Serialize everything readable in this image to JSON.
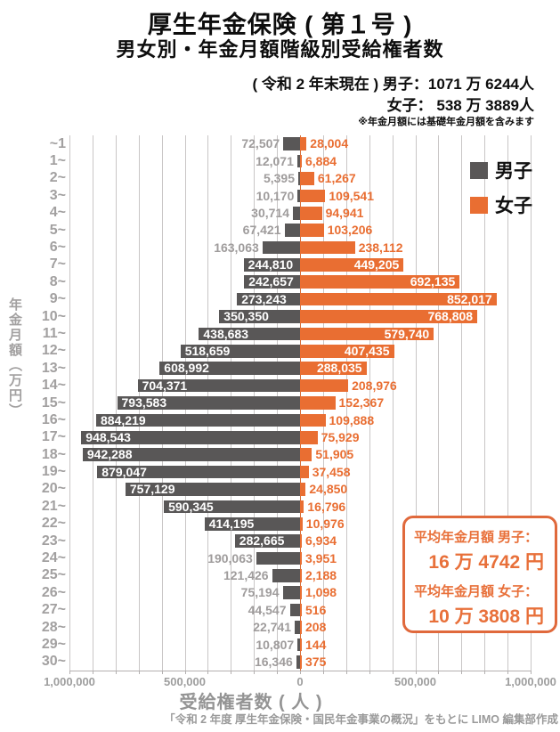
{
  "title": "厚生年金保険 ( 第１号 )",
  "subtitle": "男女別・年金月額階級別受給権者数",
  "header_info": {
    "line1": "( 令和 2 年末現在 ) 男子：1071 万 6244人",
    "line2": "女子：  538 万 3889人",
    "note": "※年金月額には基礎年金月額を含みます"
  },
  "legend": {
    "male_label": "男子",
    "female_label": "女子"
  },
  "average_box": {
    "male_label": "平均年金月額 男子：",
    "male_value": "16 万 4742 円",
    "female_label": "平均年金月額 女子：",
    "female_value": "10 万 3808 円"
  },
  "footer": "「令和 2 年度 厚生年金保険・国民年金事業の概況」をもとに LIMO 編集部作成",
  "chart_data": {
    "type": "bar",
    "orientation": "diverging-horizontal-pyramid",
    "title": "厚生年金保険（第１号）男女別・年金月額階級別受給権者数",
    "xlabel": "受給権者数 ( 人 )",
    "ylabel": "年金月額（万円）",
    "x_ticks": [
      "1,000,000",
      "500,000",
      "0",
      "500,000",
      "1,000,000"
    ],
    "xlim_per_side": 1000000,
    "grid": true,
    "grid_step": 100000,
    "legend_position": "top-right",
    "colors": {
      "male_bar": "#595757",
      "female_bar": "#e96e32",
      "male_outside_label": "#9f9c9c",
      "female_outside_label": "#e96e32",
      "inside_label": "#ffffff"
    },
    "categories": [
      "~1",
      "1~",
      "2~",
      "3~",
      "4~",
      "5~",
      "6~",
      "7~",
      "8~",
      "9~",
      "10~",
      "11~",
      "12~",
      "13~",
      "14~",
      "15~",
      "16~",
      "17~",
      "18~",
      "19~",
      "20~",
      "21~",
      "22~",
      "23~",
      "24~",
      "25~",
      "26~",
      "27~",
      "28~",
      "29~",
      "30~"
    ],
    "series": [
      {
        "name": "男子",
        "side": "left",
        "values": [
          72507,
          12071,
          5395,
          10170,
          30714,
          67421,
          163063,
          244810,
          242657,
          273243,
          350350,
          438683,
          518659,
          608992,
          704371,
          793583,
          884219,
          948543,
          942288,
          879047,
          757129,
          590345,
          414195,
          282665,
          190063,
          121426,
          75194,
          44547,
          22741,
          10807,
          16346
        ]
      },
      {
        "name": "女子",
        "side": "right",
        "values": [
          28004,
          6884,
          61267,
          109541,
          94941,
          103206,
          238112,
          449205,
          692135,
          852017,
          768808,
          579740,
          407435,
          288035,
          208976,
          152367,
          109888,
          75929,
          51905,
          37458,
          24850,
          16796,
          10976,
          6934,
          3951,
          2188,
          1098,
          516,
          208,
          144,
          375
        ]
      }
    ]
  }
}
